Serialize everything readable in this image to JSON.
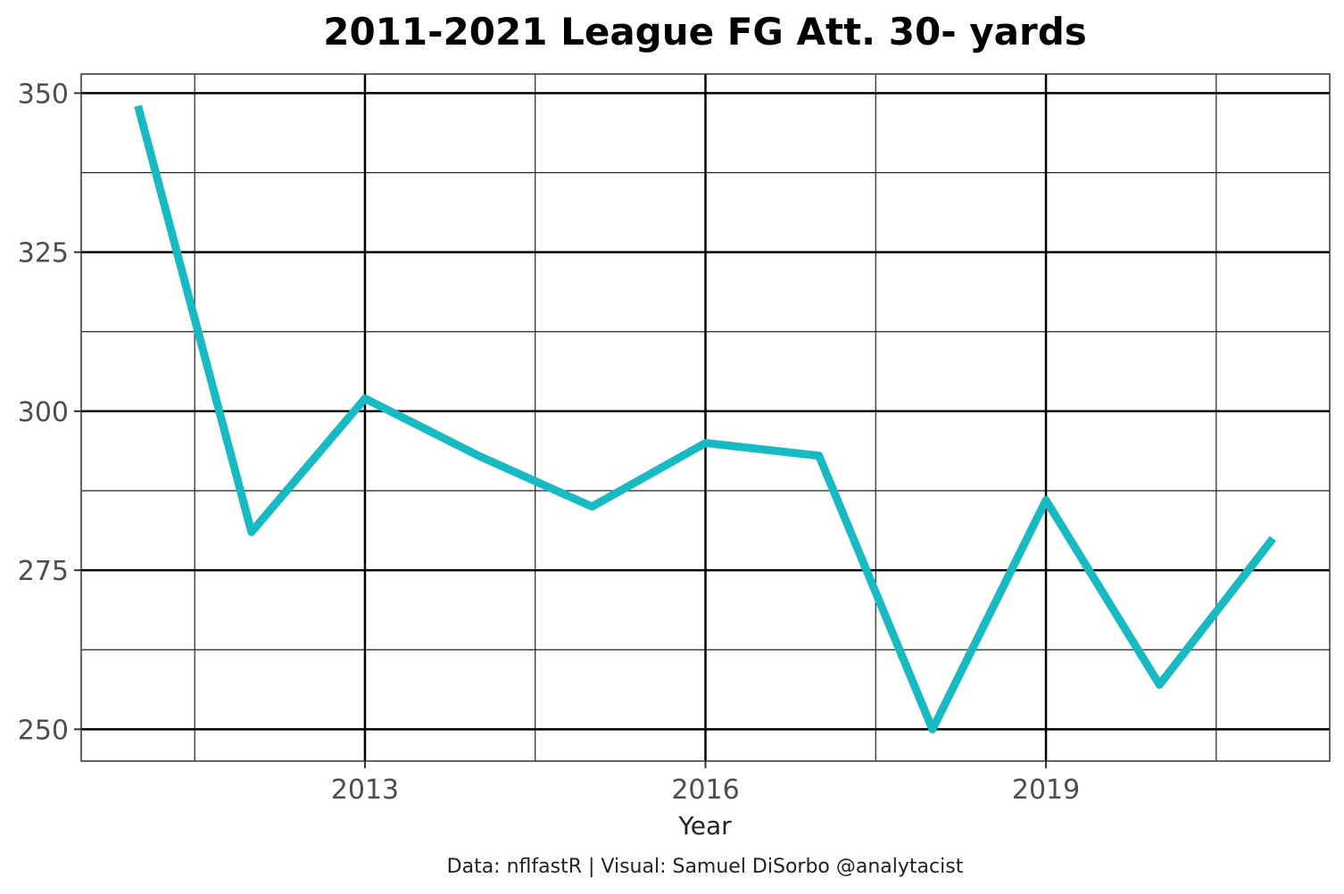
{
  "chart_data": {
    "type": "line",
    "title": "2011-2021 League FG Att. 30- yards",
    "xlabel": "Year",
    "ylabel": "",
    "caption": "Data: nflfastR | Visual: Samuel DiSorbo @analytacist",
    "x": [
      2011,
      2012,
      2013,
      2014,
      2015,
      2016,
      2017,
      2018,
      2019,
      2020,
      2021
    ],
    "series": [
      {
        "name": "FG Att. 30- yards",
        "color": "#17BAC2",
        "values": [
          348,
          281,
          302,
          293,
          285,
          295,
          293,
          250,
          286,
          257,
          280
        ]
      }
    ],
    "xlim": [
      2010.5,
      2021.5
    ],
    "ylim": [
      245,
      353
    ],
    "x_ticks": [
      2013,
      2016,
      2019
    ],
    "x_tick_labels": [
      "2013",
      "2016",
      "2019"
    ],
    "x_minor_ticks": [
      2011.5,
      2014.5,
      2017.5,
      2020.5
    ],
    "y_ticks": [
      250,
      275,
      300,
      325,
      350
    ],
    "y_tick_labels": [
      "250",
      "275",
      "300",
      "325",
      "350"
    ],
    "y_minor_ticks": [
      262.5,
      287.5,
      312.5,
      337.5
    ],
    "grid": true,
    "legend": "none"
  }
}
